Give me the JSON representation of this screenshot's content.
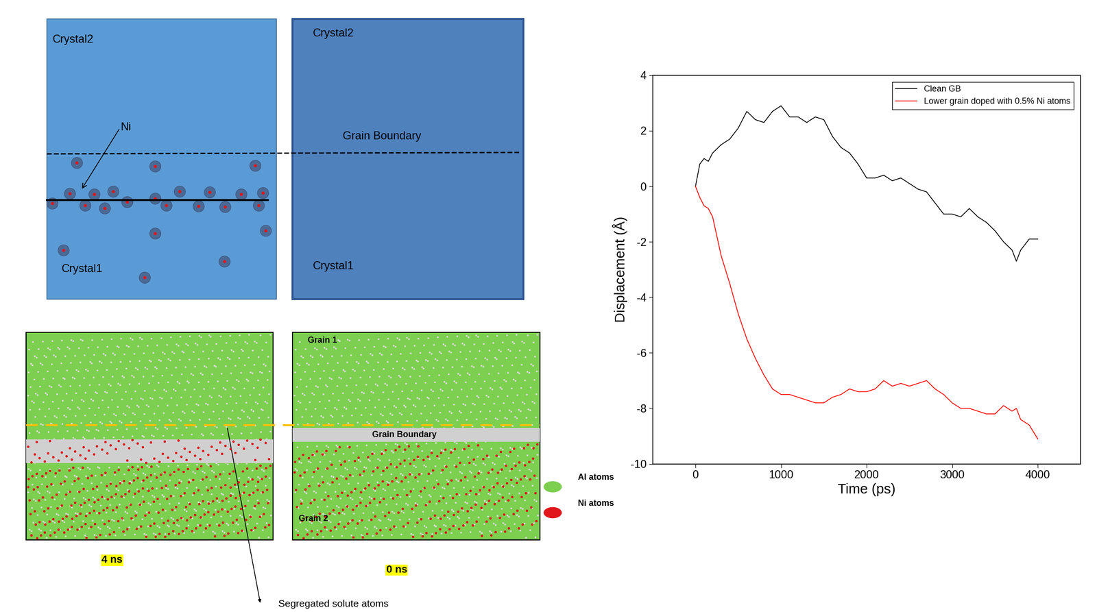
{
  "chart_data": {
    "type": "line",
    "x": [
      0,
      50,
      100,
      150,
      200,
      300,
      400,
      500,
      600,
      700,
      800,
      900,
      1000,
      1100,
      1200,
      1300,
      1400,
      1500,
      1600,
      1700,
      1800,
      1900,
      2000,
      2100,
      2200,
      2300,
      2400,
      2500,
      2600,
      2700,
      2800,
      2900,
      3000,
      3100,
      3200,
      3300,
      3400,
      3500,
      3600,
      3700,
      3750,
      3800,
      3900,
      4000
    ],
    "series": [
      {
        "name": "Clean GB",
        "color": "#000000",
        "values": [
          0,
          0.8,
          1.0,
          0.9,
          1.2,
          1.5,
          1.7,
          2.1,
          2.7,
          2.4,
          2.3,
          2.7,
          2.9,
          2.5,
          2.5,
          2.3,
          2.5,
          2.4,
          1.8,
          1.4,
          1.2,
          0.8,
          0.3,
          0.3,
          0.4,
          0.2,
          0.3,
          0.1,
          -0.1,
          -0.2,
          -0.6,
          -1.0,
          -1.0,
          -1.1,
          -0.8,
          -1.1,
          -1.3,
          -1.6,
          -2.0,
          -2.3,
          -2.7,
          -2.3,
          -1.9,
          -1.9
        ]
      },
      {
        "name": "Lower grain doped with 0.5% Ni atoms",
        "color": "#ff0000",
        "values": [
          0,
          -0.4,
          -0.7,
          -0.8,
          -1.1,
          -2.5,
          -3.5,
          -4.6,
          -5.5,
          -6.2,
          -6.8,
          -7.3,
          -7.5,
          -7.5,
          -7.6,
          -7.7,
          -7.8,
          -7.8,
          -7.6,
          -7.5,
          -7.3,
          -7.4,
          -7.4,
          -7.3,
          -7.0,
          -7.2,
          -7.1,
          -7.2,
          -7.1,
          -7.0,
          -7.3,
          -7.5,
          -7.8,
          -8.0,
          -8.0,
          -8.1,
          -8.2,
          -8.2,
          -7.9,
          -8.1,
          -8.0,
          -8.4,
          -8.6,
          -9.1
        ]
      }
    ],
    "xlabel": "Time (ps)",
    "ylabel": "Displacement (Å)",
    "xlim": [
      -500,
      4500
    ],
    "ylim": [
      -10,
      4
    ],
    "xticks": [
      0,
      1000,
      2000,
      3000,
      4000
    ],
    "yticks": [
      -10,
      -8,
      -6,
      -4,
      -2,
      0,
      2,
      4
    ],
    "legend": "upper right"
  },
  "diagram": {
    "schematic": {
      "left_panel": {
        "top": "Crystal2",
        "bottom": "Crystal1",
        "solute_label": "Ni"
      },
      "right_panel": {
        "top": "Crystal2",
        "boundary": "Grain Boundary",
        "bottom": "Crystal1"
      }
    },
    "snapshots": {
      "left_time": "4 ns",
      "right_time": "0 ns",
      "grain_top": "Grain 1",
      "boundary": "Grain Boundary",
      "grain_bottom": "Grain 2",
      "legend": [
        {
          "label": "Al atoms",
          "color": "#7ccf4f"
        },
        {
          "label": "Ni atoms",
          "color": "#e0161b"
        }
      ],
      "annotation": "Segregated solute atoms"
    }
  }
}
